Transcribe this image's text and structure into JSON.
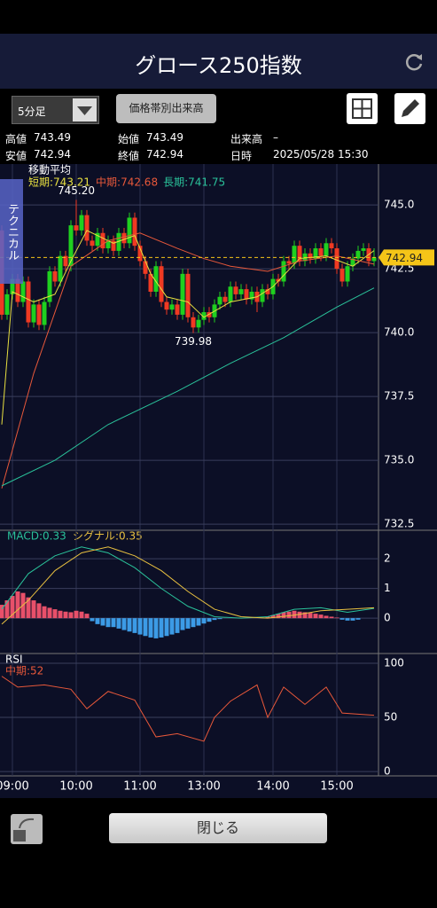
{
  "header": {
    "title": "グロース250指数"
  },
  "controls": {
    "interval": "5分足",
    "volume_button": "価格帯別出来高",
    "side_tab": "テクニカル",
    "close_button": "閉じる"
  },
  "info": [
    {
      "label": "高値",
      "value": 743.49
    },
    {
      "label": "始値",
      "value": 743.49
    },
    {
      "label": "出来高",
      "value": "–"
    },
    {
      "label": "安値",
      "value": 742.94
    },
    {
      "label": "終値",
      "value": 742.94
    },
    {
      "label": "日時",
      "value": "2025/05/28 15:30"
    }
  ],
  "chart_data": {
    "type": "candlestick",
    "categories": [
      null,
      null,
      "09:00",
      null,
      null,
      null,
      null,
      null,
      null,
      null,
      null,
      null,
      null,
      null,
      "10:00",
      null,
      null,
      null,
      null,
      null,
      null,
      null,
      null,
      null,
      null,
      null,
      "11:00",
      null,
      null,
      null,
      null,
      null,
      null,
      null,
      null,
      null,
      null,
      null,
      "13:00",
      null,
      null,
      null,
      null,
      null,
      null,
      null,
      null,
      null,
      null,
      null,
      null,
      "14:00",
      null,
      null,
      null,
      null,
      null,
      null,
      null,
      null,
      null,
      null,
      null,
      "15:00",
      null,
      null,
      null,
      null,
      null,
      null,
      null
    ],
    "candles": {
      "open": [
        744.0,
        740.7,
        741.5,
        742.1,
        741.2,
        742.0,
        740.4,
        741.1,
        740.3,
        741.2,
        742.4,
        742.0,
        743.0,
        742.6,
        744.2,
        744.0,
        744.6,
        743.6,
        743.4,
        743.9,
        743.3,
        743.6,
        743.2,
        743.9,
        743.5,
        744.5,
        743.4,
        742.8,
        742.3,
        741.6,
        742.6,
        741.2,
        740.9,
        741.1,
        740.7,
        742.3,
        740.6,
        740.2,
        740.5,
        740.8,
        740.6,
        741.1,
        741.4,
        741.2,
        741.8,
        741.5,
        741.7,
        741.3,
        741.6,
        741.2,
        741.7,
        741.5,
        742.1,
        742.0,
        742.8,
        742.7,
        743.4,
        742.8,
        743.1,
        742.9,
        743.3,
        743.0,
        743.5,
        743.3,
        742.5,
        742.0,
        742.6,
        742.9,
        743.2,
        743.3,
        742.8
      ],
      "high": [
        744.2,
        741.7,
        742.3,
        742.3,
        742.2,
        742.2,
        741.3,
        741.3,
        741.4,
        742.6,
        742.6,
        743.2,
        743.2,
        744.4,
        745.2,
        744.8,
        744.8,
        743.8,
        744.1,
        744.1,
        743.8,
        743.8,
        744.1,
        744.1,
        744.7,
        744.7,
        743.6,
        743.0,
        742.5,
        742.8,
        742.8,
        741.4,
        741.3,
        741.3,
        742.5,
        742.5,
        740.8,
        740.7,
        741.0,
        741.0,
        741.3,
        741.6,
        741.6,
        742.0,
        742.0,
        741.9,
        741.9,
        741.8,
        741.8,
        741.9,
        741.9,
        742.3,
        742.3,
        743.0,
        743.0,
        743.6,
        743.6,
        743.3,
        743.3,
        743.5,
        743.5,
        743.7,
        743.7,
        743.5,
        742.7,
        742.8,
        743.1,
        743.4,
        743.5,
        743.5,
        743.3
      ],
      "low": [
        740.5,
        740.5,
        741.3,
        741.0,
        741.0,
        740.2,
        740.2,
        740.1,
        740.1,
        741.0,
        741.8,
        741.8,
        742.4,
        742.4,
        743.8,
        743.8,
        743.4,
        743.2,
        743.2,
        743.1,
        743.1,
        743.0,
        743.0,
        743.3,
        743.3,
        743.2,
        742.6,
        742.1,
        741.4,
        741.4,
        741.0,
        740.7,
        740.7,
        740.5,
        740.5,
        740.4,
        739.98,
        740.0,
        740.3,
        740.4,
        740.4,
        740.9,
        741.0,
        741.0,
        741.3,
        741.3,
        741.1,
        741.1,
        740.8,
        741.0,
        741.3,
        741.3,
        741.8,
        741.8,
        742.5,
        742.5,
        742.6,
        742.6,
        742.7,
        742.7,
        742.8,
        742.8,
        743.1,
        742.3,
        741.8,
        741.8,
        742.4,
        742.7,
        743.0,
        742.6,
        742.6
      ],
      "close": [
        740.7,
        741.5,
        742.1,
        741.2,
        742.0,
        740.4,
        741.1,
        740.3,
        741.2,
        742.4,
        742.0,
        743.0,
        742.6,
        744.2,
        744.0,
        744.6,
        743.6,
        743.4,
        743.9,
        743.3,
        743.6,
        743.2,
        743.9,
        743.5,
        744.5,
        743.4,
        742.8,
        742.3,
        741.6,
        742.6,
        741.2,
        740.9,
        741.1,
        740.7,
        742.3,
        740.6,
        740.2,
        740.5,
        740.8,
        740.6,
        741.1,
        741.4,
        741.2,
        741.8,
        741.5,
        741.7,
        741.3,
        741.6,
        741.2,
        741.7,
        741.5,
        742.1,
        742.0,
        742.8,
        742.7,
        743.4,
        742.8,
        743.1,
        742.9,
        743.3,
        743.0,
        743.5,
        743.3,
        742.5,
        742.0,
        742.6,
        742.9,
        743.2,
        743.3,
        742.8,
        742.94
      ]
    },
    "up_color": "#1fd01f",
    "down_color": "#f03a22",
    "ylim": [
      732.26,
      746.6
    ],
    "yticks": [
      {
        "value": 745,
        "label": "745.0"
      },
      {
        "value": 742.5,
        "label": "742.5"
      },
      {
        "value": 740,
        "label": "740.0"
      },
      {
        "value": 737.5,
        "label": "737.5"
      },
      {
        "value": 735,
        "label": "735.0"
      },
      {
        "value": 732.5,
        "label": "732.5"
      }
    ],
    "grid": true,
    "ma_title": "移動平均",
    "series": [
      {
        "name": "短期:743.21",
        "color": "#e8e040",
        "x": [
          0,
          2,
          6,
          10,
          13,
          16,
          21,
          25,
          28,
          31,
          35,
          38,
          43,
          48,
          51,
          56,
          61,
          66,
          70
        ],
        "values": [
          736.4,
          741.6,
          741.2,
          741.5,
          742.8,
          744.0,
          743.5,
          743.8,
          742.3,
          741.4,
          741.2,
          740.6,
          741.2,
          741.4,
          741.8,
          742.9,
          743.0,
          742.6,
          743.21
        ]
      },
      {
        "name": "中期:742.68",
        "color": "#e8583a",
        "x": [
          0,
          6,
          13,
          20,
          26,
          33,
          38,
          43,
          50,
          56,
          63,
          70
        ],
        "values": [
          733.9,
          738.4,
          742.6,
          743.6,
          743.9,
          743.3,
          742.9,
          742.6,
          742.4,
          742.8,
          743.0,
          742.68
        ]
      },
      {
        "name": "長期:741.75",
        "color": "#2ac29a",
        "x": [
          0,
          10,
          20,
          33,
          43,
          53,
          63,
          70
        ],
        "values": [
          734.0,
          735.0,
          736.4,
          737.7,
          738.8,
          739.8,
          741.0,
          741.75
        ]
      }
    ],
    "annotations": [
      {
        "value": 745.2,
        "label": "745.20"
      },
      {
        "value": 739.98,
        "label": "739.98"
      }
    ],
    "last_color": "#f5c518",
    "macd": {
      "ylim": [
        -1.19,
        2.96
      ],
      "yticks": [
        2,
        1,
        0
      ],
      "histogram": [
        0.45,
        0.6,
        0.75,
        0.9,
        0.85,
        0.7,
        0.6,
        0.5,
        0.4,
        0.35,
        0.3,
        0.25,
        0.22,
        0.2,
        0.25,
        0.22,
        0.15,
        -0.1,
        -0.2,
        -0.25,
        -0.3,
        -0.3,
        -0.35,
        -0.4,
        -0.45,
        -0.5,
        -0.55,
        -0.6,
        -0.65,
        -0.68,
        -0.65,
        -0.6,
        -0.55,
        -0.5,
        -0.4,
        -0.35,
        -0.3,
        -0.25,
        -0.18,
        -0.12,
        -0.06,
        -0.03,
        0,
        0,
        0,
        0,
        0,
        0,
        0,
        0.02,
        0.05,
        0.1,
        0.15,
        0.2,
        0.22,
        0.25,
        0.22,
        0.2,
        0.18,
        0.15,
        0.12,
        0.08,
        0.05,
        0.02,
        -0.05,
        -0.08,
        -0.08,
        -0.05,
        0,
        0,
        0
      ],
      "pos_color": "#e8506a",
      "neg_color": "#3c9be6",
      "series": [
        {
          "name": "MACD:0.33",
          "color": "#2ac29a",
          "x": [
            0,
            5,
            10,
            15,
            20,
            25,
            30,
            35,
            40,
            45,
            50,
            55,
            60,
            65,
            70
          ],
          "values": [
            0.3,
            1.5,
            2.1,
            2.4,
            2.2,
            1.7,
            1.0,
            0.4,
            0.05,
            0.0,
            0.05,
            0.3,
            0.35,
            0.2,
            0.33
          ]
        },
        {
          "name": "シグナル:0.35",
          "color": "#e8c040",
          "x": [
            0,
            5,
            10,
            15,
            20,
            25,
            30,
            35,
            40,
            45,
            50,
            55,
            60,
            65,
            70
          ],
          "values": [
            -0.2,
            0.6,
            1.6,
            2.2,
            2.4,
            2.1,
            1.6,
            0.9,
            0.3,
            0.05,
            0.0,
            0.1,
            0.25,
            0.3,
            0.35
          ]
        }
      ]
    },
    "rsi": {
      "title": "RSI",
      "ylim": [
        -4,
        109
      ],
      "yticks": [
        100,
        50,
        0
      ],
      "series": [
        {
          "name": "中期:52",
          "color": "#e8583a",
          "x": [
            0,
            3,
            8,
            13,
            16,
            20,
            25,
            29,
            33,
            38,
            40,
            43,
            48,
            50,
            53,
            57,
            61,
            64,
            67,
            70
          ],
          "values": [
            88,
            78,
            80,
            76,
            58,
            74,
            66,
            32,
            35,
            28,
            50,
            65,
            80,
            50,
            78,
            62,
            78,
            54,
            53,
            52
          ]
        }
      ]
    }
  }
}
